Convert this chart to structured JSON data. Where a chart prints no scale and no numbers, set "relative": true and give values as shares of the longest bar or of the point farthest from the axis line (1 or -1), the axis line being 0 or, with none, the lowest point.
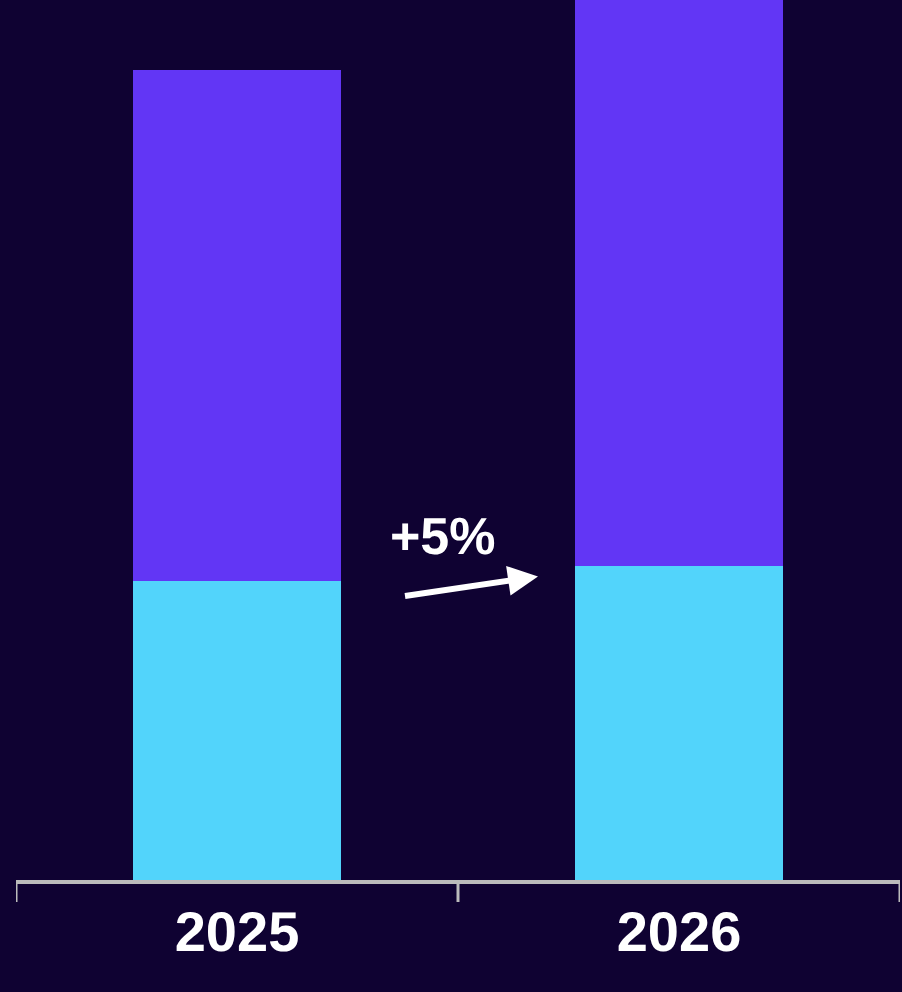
{
  "chart_data": {
    "type": "bar",
    "stacked": true,
    "relative": true,
    "categories": [
      "2025",
      "2026"
    ],
    "series": [
      {
        "color": "#52d4fb",
        "values": [
          0.34,
          0.357
        ]
      },
      {
        "color": "#6236f5",
        "values": [
          0.58,
          0.643
        ]
      }
    ],
    "annotations": [
      "+5%"
    ]
  }
}
